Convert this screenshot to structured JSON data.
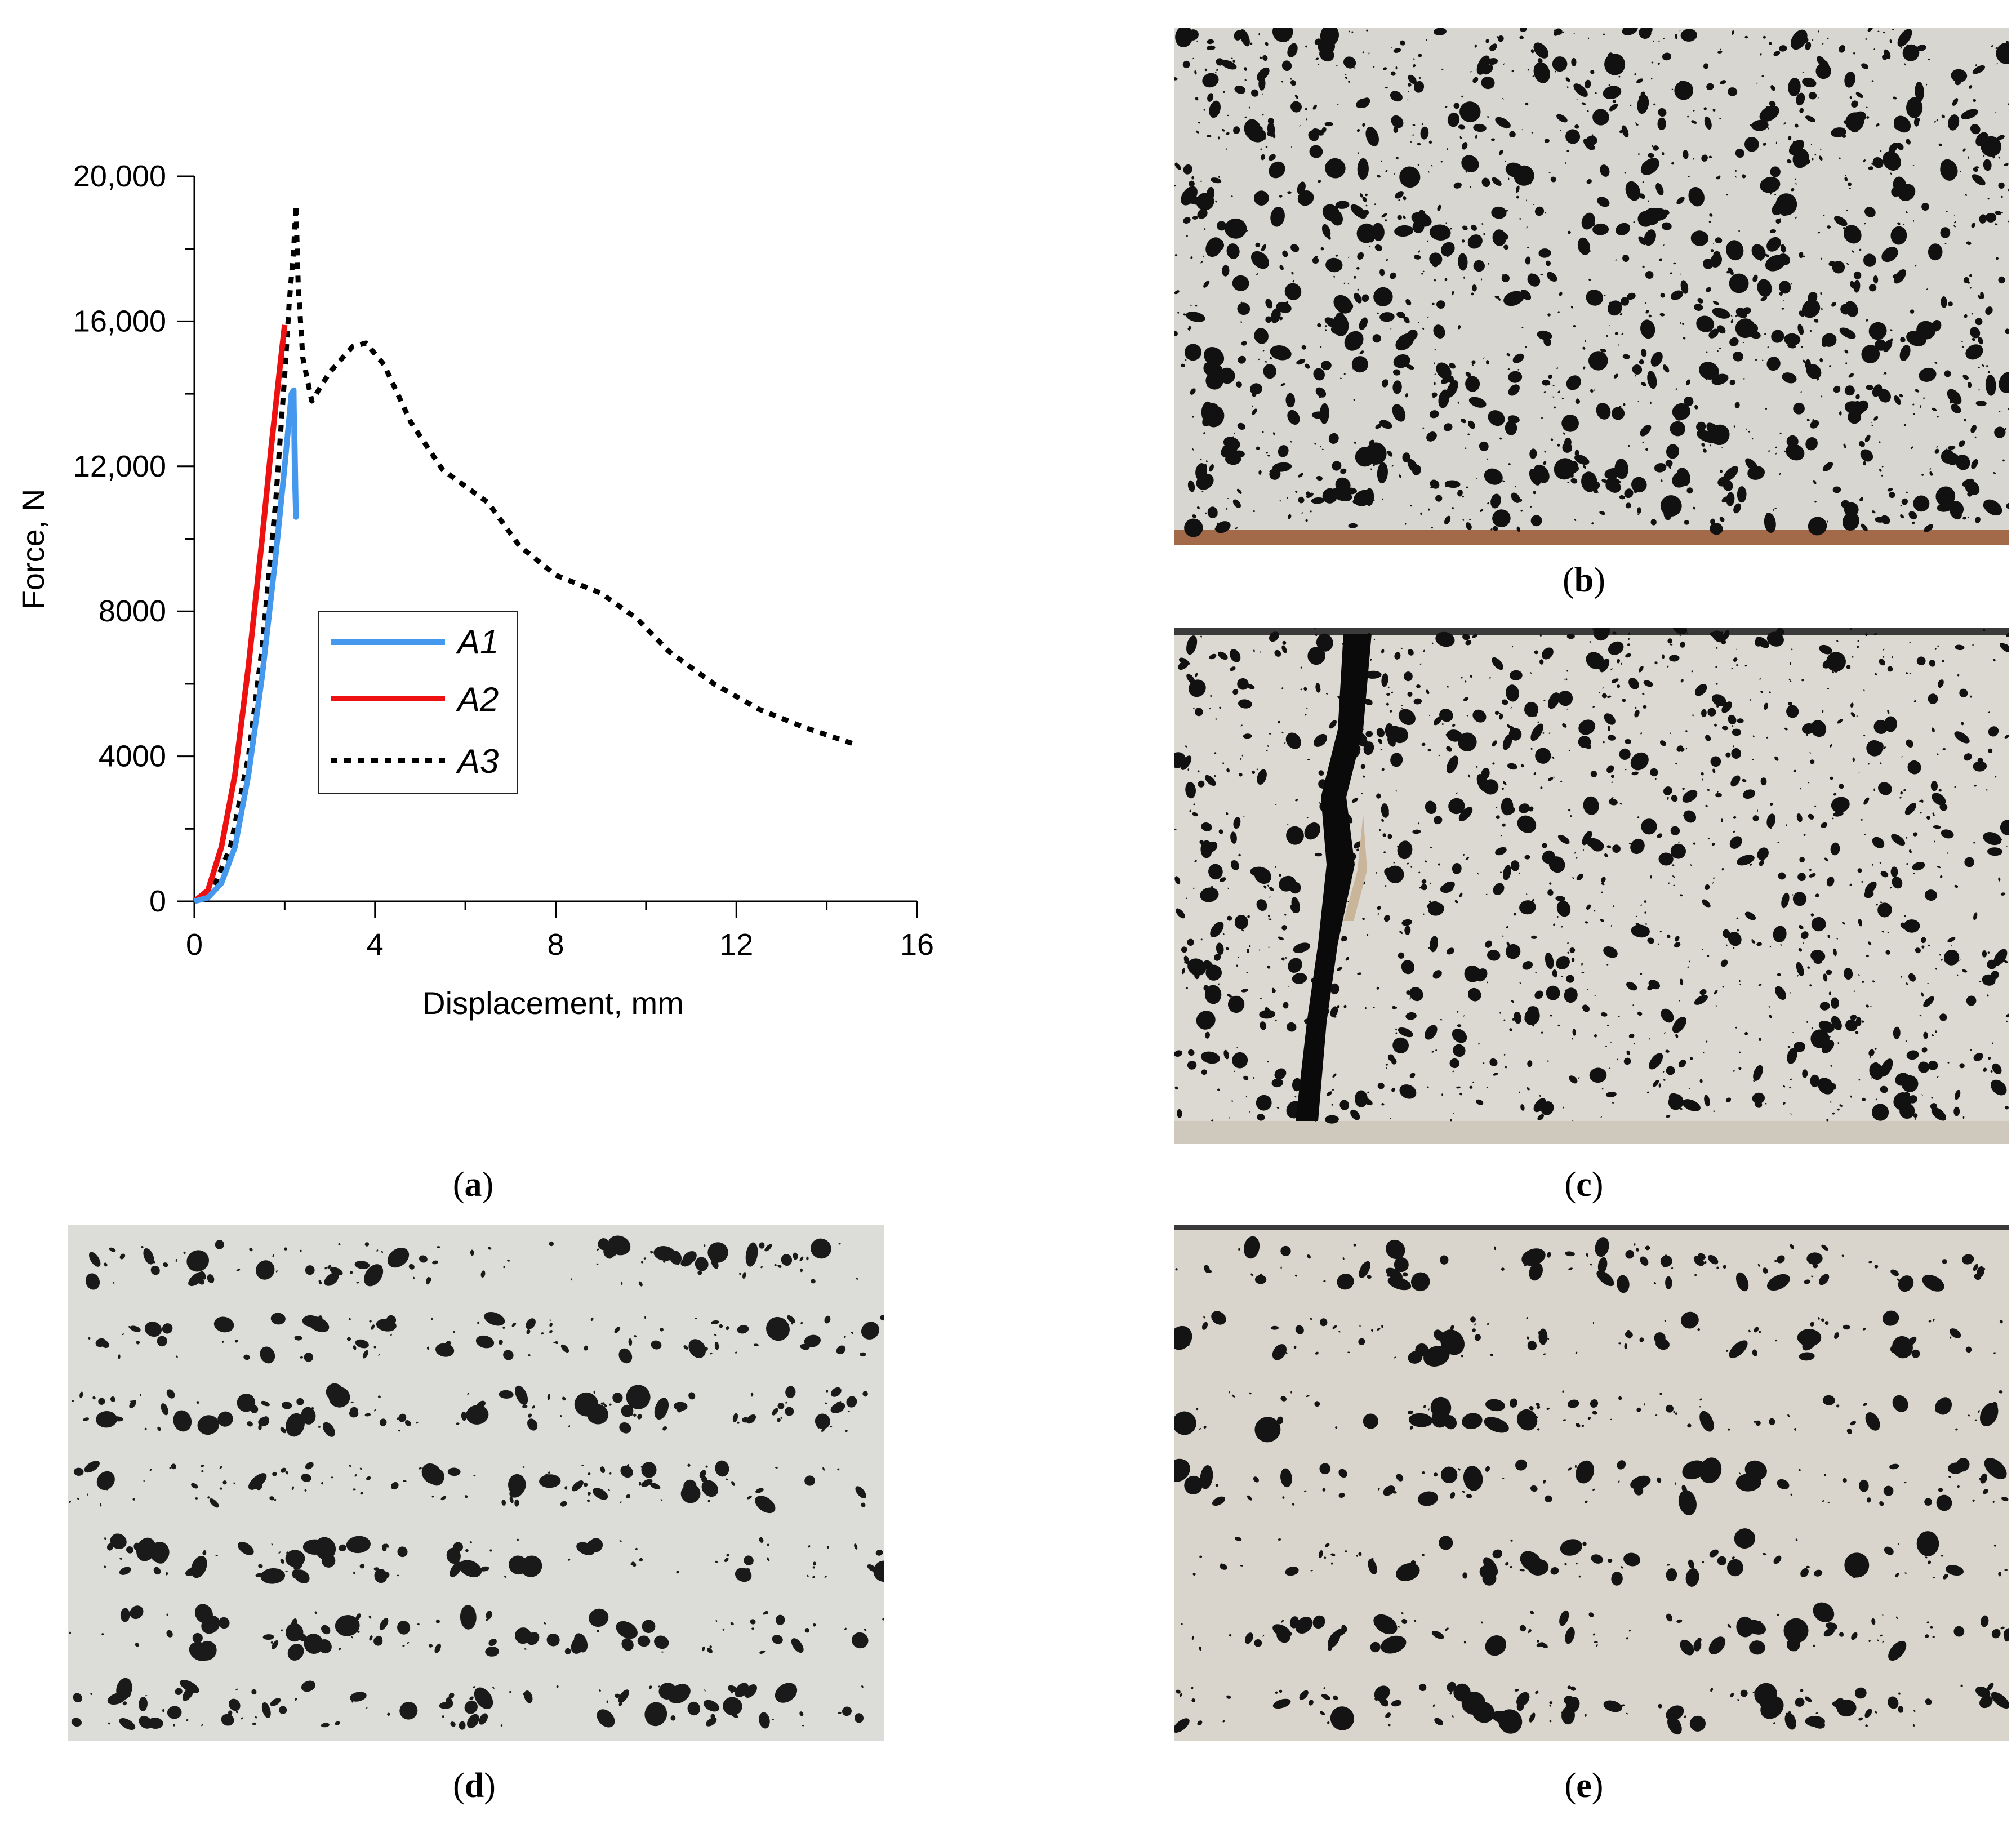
{
  "chart_data": {
    "type": "line",
    "title": "",
    "xlabel": "Displacement, mm",
    "ylabel": "Force, N",
    "xlim": [
      0,
      16
    ],
    "ylim": [
      0,
      20000
    ],
    "x_ticks": [
      0,
      4,
      8,
      12,
      16
    ],
    "x_tick_labels": [
      "0",
      "4",
      "8",
      "12",
      "16"
    ],
    "y_ticks": [
      0,
      4000,
      8000,
      12000,
      16000,
      20000
    ],
    "y_tick_labels": [
      "0",
      "4000",
      "8000",
      "12,000",
      "16,000",
      "20,000"
    ],
    "legend_position": "center",
    "series": [
      {
        "name": "A1",
        "color": "#4499ee",
        "style": "solid",
        "x": [
          0,
          0.3,
          0.6,
          0.9,
          1.2,
          1.5,
          1.8,
          2.0,
          2.15,
          2.2,
          2.22,
          2.25,
          2.22,
          2.2
        ],
        "y": [
          0,
          100,
          500,
          1500,
          3500,
          6200,
          9500,
          12000,
          14000,
          14100,
          12000,
          10600,
          12800,
          13800
        ]
      },
      {
        "name": "A2",
        "color": "#ee1111",
        "style": "solid",
        "x": [
          0,
          0.3,
          0.6,
          0.9,
          1.2,
          1.5,
          1.7,
          1.9,
          2.0
        ],
        "y": [
          0,
          300,
          1500,
          3500,
          6500,
          10000,
          12500,
          14800,
          15900
        ]
      },
      {
        "name": "A3",
        "color": "#000000",
        "style": "dotted",
        "x": [
          0,
          0.4,
          0.8,
          1.2,
          1.5,
          1.8,
          2.0,
          2.1,
          2.2,
          2.25,
          2.3,
          2.4,
          2.6,
          3.0,
          3.5,
          3.8,
          4.2,
          4.8,
          5.5,
          6.5,
          7.2,
          8.0,
          9.0,
          9.8,
          10.5,
          11.5,
          12.5,
          13.5,
          14.7
        ],
        "y": [
          0,
          300,
          1500,
          4000,
          7000,
          11000,
          14500,
          16500,
          18000,
          19200,
          17000,
          15000,
          13800,
          14600,
          15300,
          15400,
          14800,
          13200,
          11900,
          11000,
          9800,
          9000,
          8500,
          7800,
          6900,
          6000,
          5300,
          4800,
          4300
        ]
      }
    ]
  },
  "captions": {
    "a": "a",
    "b": "b",
    "c": "c",
    "d": "d",
    "e": "e"
  },
  "photos": {
    "b_desc_colors": {
      "bg": "#d8d6d1",
      "spot": "#111111",
      "floor": "#a36a4a"
    },
    "c_desc_colors": {
      "bg": "#dcd9d2",
      "spot": "#111111",
      "crack": "#0a0a0a"
    },
    "d_desc_colors": {
      "bg": "#dcdcd8",
      "spot": "#1a1a1a"
    },
    "e_desc_colors": {
      "bg": "#d9d5cc",
      "spot": "#141414"
    }
  }
}
